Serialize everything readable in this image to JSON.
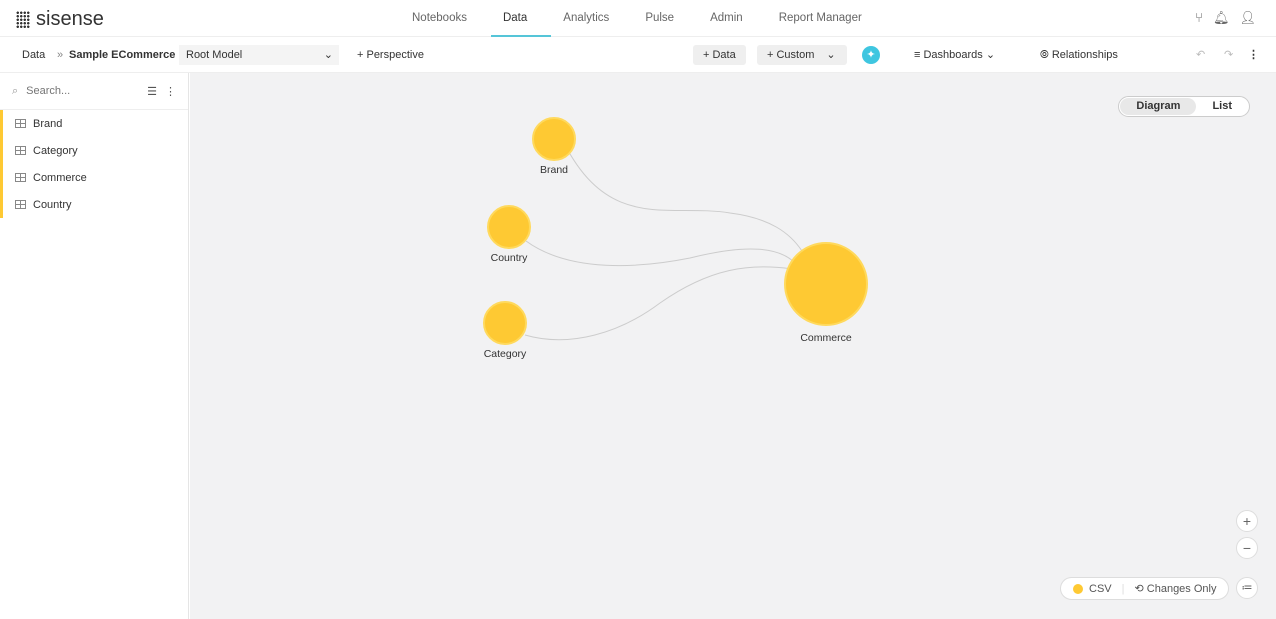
{
  "brand": {
    "name": "sisense"
  },
  "nav": [
    {
      "label": "Notebooks"
    },
    {
      "label": "Data",
      "active": true
    },
    {
      "label": "Analytics"
    },
    {
      "label": "Pulse"
    },
    {
      "label": "Admin"
    },
    {
      "label": "Report Manager"
    }
  ],
  "toolbar": {
    "crumb_root": "Data",
    "crumb_sep": "»",
    "crumb_current": "Sample ECommerce",
    "model": "Root Model",
    "perspective": "+ Perspective",
    "add_data": "+ Data",
    "custom": "+ Custom",
    "dashboards": "Dashboards",
    "relationships": "Relationships"
  },
  "sidebar": {
    "search_placeholder": "Search...",
    "items": [
      {
        "label": "Brand"
      },
      {
        "label": "Category"
      },
      {
        "label": "Commerce"
      },
      {
        "label": "Country"
      }
    ]
  },
  "view_toggle": {
    "diagram": "Diagram",
    "list": "List",
    "active": "Diagram"
  },
  "nodes": {
    "brand": "Brand",
    "country": "Country",
    "category": "Category",
    "commerce": "Commerce"
  },
  "legend": {
    "csv": "CSV",
    "changes": "Changes Only"
  },
  "colors": {
    "accent": "#55c5d8",
    "node": "#fec933"
  }
}
